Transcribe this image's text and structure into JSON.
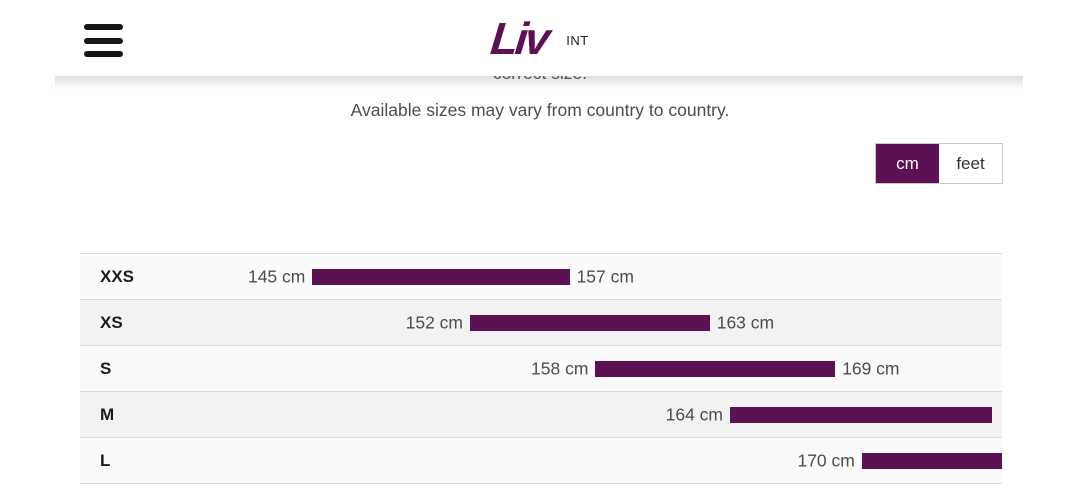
{
  "header": {
    "brand": "Liv",
    "region": "INT"
  },
  "intro": {
    "clipped_text": "correct size.",
    "subtitle": "Available sizes may vary from country to country."
  },
  "unit_toggle": {
    "options": [
      {
        "label": "cm",
        "active": true
      },
      {
        "label": "feet",
        "active": false
      }
    ]
  },
  "colors": {
    "brand_purple": "#5c1154",
    "text_gray": "#4d4d4d",
    "row_light": "#fafafa",
    "row_dark": "#f2f2f2",
    "row_border": "#dcdcdc"
  },
  "chart_data": {
    "type": "bar",
    "subtype": "horizontal-range",
    "unit": "cm",
    "description": "Rider height range per frame size (M and L ranges clipped at right edge of view)",
    "rows": [
      {
        "size": "XXS",
        "min_cm": 145,
        "max_cm": 157,
        "min_label": "145 cm",
        "max_label": "157 cm",
        "bar_start_pct": 25.2,
        "bar_end_pct": 53.1
      },
      {
        "size": "XS",
        "min_cm": 152,
        "max_cm": 163,
        "min_label": "152 cm",
        "max_label": "163 cm",
        "bar_start_pct": 42.3,
        "bar_end_pct": 68.3
      },
      {
        "size": "S",
        "min_cm": 158,
        "max_cm": 169,
        "min_label": "158 cm",
        "max_label": "169 cm",
        "bar_start_pct": 55.9,
        "bar_end_pct": 81.9
      },
      {
        "size": "M",
        "min_cm": 164,
        "max_cm": null,
        "min_label": "164 cm",
        "max_label": "",
        "bar_start_pct": 70.5,
        "bar_end_pct": 98.9
      },
      {
        "size": "L",
        "min_cm": 170,
        "max_cm": null,
        "min_label": "170 cm",
        "max_label": "",
        "bar_start_pct": 84.8,
        "bar_end_pct": 104.5
      }
    ]
  }
}
